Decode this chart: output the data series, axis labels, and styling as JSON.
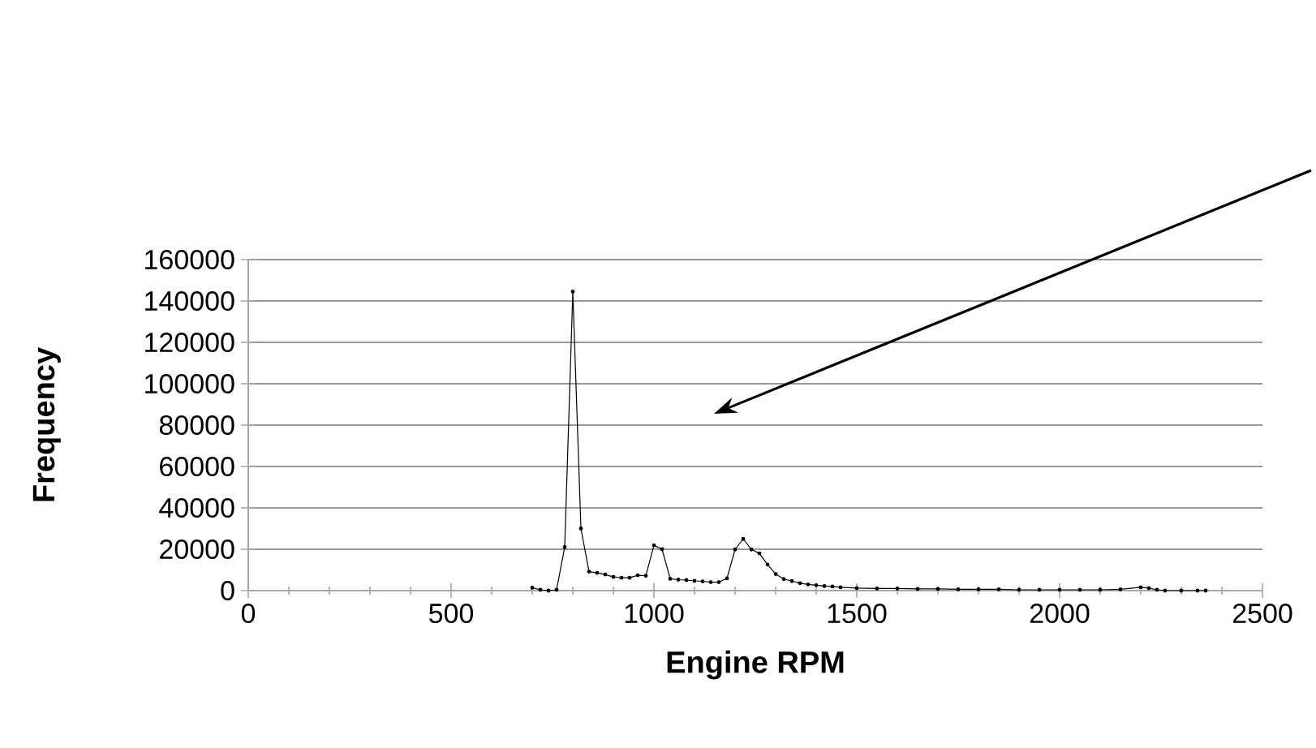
{
  "chart_data": {
    "type": "line",
    "xlabel": "Engine RPM",
    "ylabel": "Frequency",
    "x": [
      700,
      720,
      740,
      760,
      780,
      800,
      820,
      840,
      860,
      880,
      900,
      920,
      940,
      960,
      980,
      1000,
      1020,
      1040,
      1060,
      1080,
      1100,
      1120,
      1140,
      1160,
      1180,
      1200,
      1220,
      1240,
      1260,
      1280,
      1300,
      1320,
      1340,
      1360,
      1380,
      1400,
      1420,
      1440,
      1460,
      1500,
      1550,
      1600,
      1650,
      1700,
      1750,
      1800,
      1850,
      1900,
      1950,
      2000,
      2050,
      2100,
      2150,
      2200,
      2220,
      2240,
      2260,
      2300,
      2340,
      2360
    ],
    "series": [
      {
        "color": "#000000",
        "values": [
          1400,
          400,
          0,
          400,
          21000,
          144500,
          30000,
          9200,
          8600,
          7800,
          6600,
          6200,
          6200,
          7400,
          7200,
          21900,
          20000,
          5700,
          5300,
          5100,
          4700,
          4500,
          4100,
          4100,
          5900,
          19900,
          25000,
          19900,
          18000,
          12600,
          8000,
          5600,
          4600,
          3600,
          3000,
          2600,
          2200,
          2000,
          1600,
          1200,
          1000,
          1000,
          800,
          800,
          600,
          600,
          600,
          400,
          400,
          400,
          400,
          400,
          600,
          1600,
          1200,
          400,
          0,
          0,
          0,
          0
        ]
      }
    ],
    "xlim": [
      0,
      2500
    ],
    "ylim": [
      0,
      160000
    ],
    "xticks": [
      0,
      {
        "value": 100,
        "label": null
      },
      {
        "value": 200,
        "label": null
      },
      {
        "value": 300,
        "label": null
      },
      {
        "value": 400,
        "label": null
      },
      500,
      {
        "value": 600,
        "label": null
      },
      {
        "value": 700,
        "label": null
      },
      {
        "value": 800,
        "label": null
      },
      {
        "value": 900,
        "label": null
      },
      1000,
      {
        "value": 1100,
        "label": null
      },
      {
        "value": 1200,
        "label": null
      },
      {
        "value": 1300,
        "label": null
      },
      {
        "value": 1400,
        "label": null
      },
      1500,
      {
        "value": 1600,
        "label": null
      },
      {
        "value": 1700,
        "label": null
      },
      {
        "value": 1800,
        "label": null
      },
      {
        "value": 1900,
        "label": null
      },
      2000,
      {
        "value": 2100,
        "label": null
      },
      {
        "value": 2200,
        "label": null
      },
      {
        "value": 2300,
        "label": null
      },
      {
        "value": 2400,
        "label": null
      },
      2500
    ],
    "yticks": [
      0,
      20000,
      40000,
      60000,
      80000,
      100000,
      120000,
      140000,
      160000
    ],
    "grid": "y",
    "marker": "circle",
    "line_style": "solid"
  }
}
